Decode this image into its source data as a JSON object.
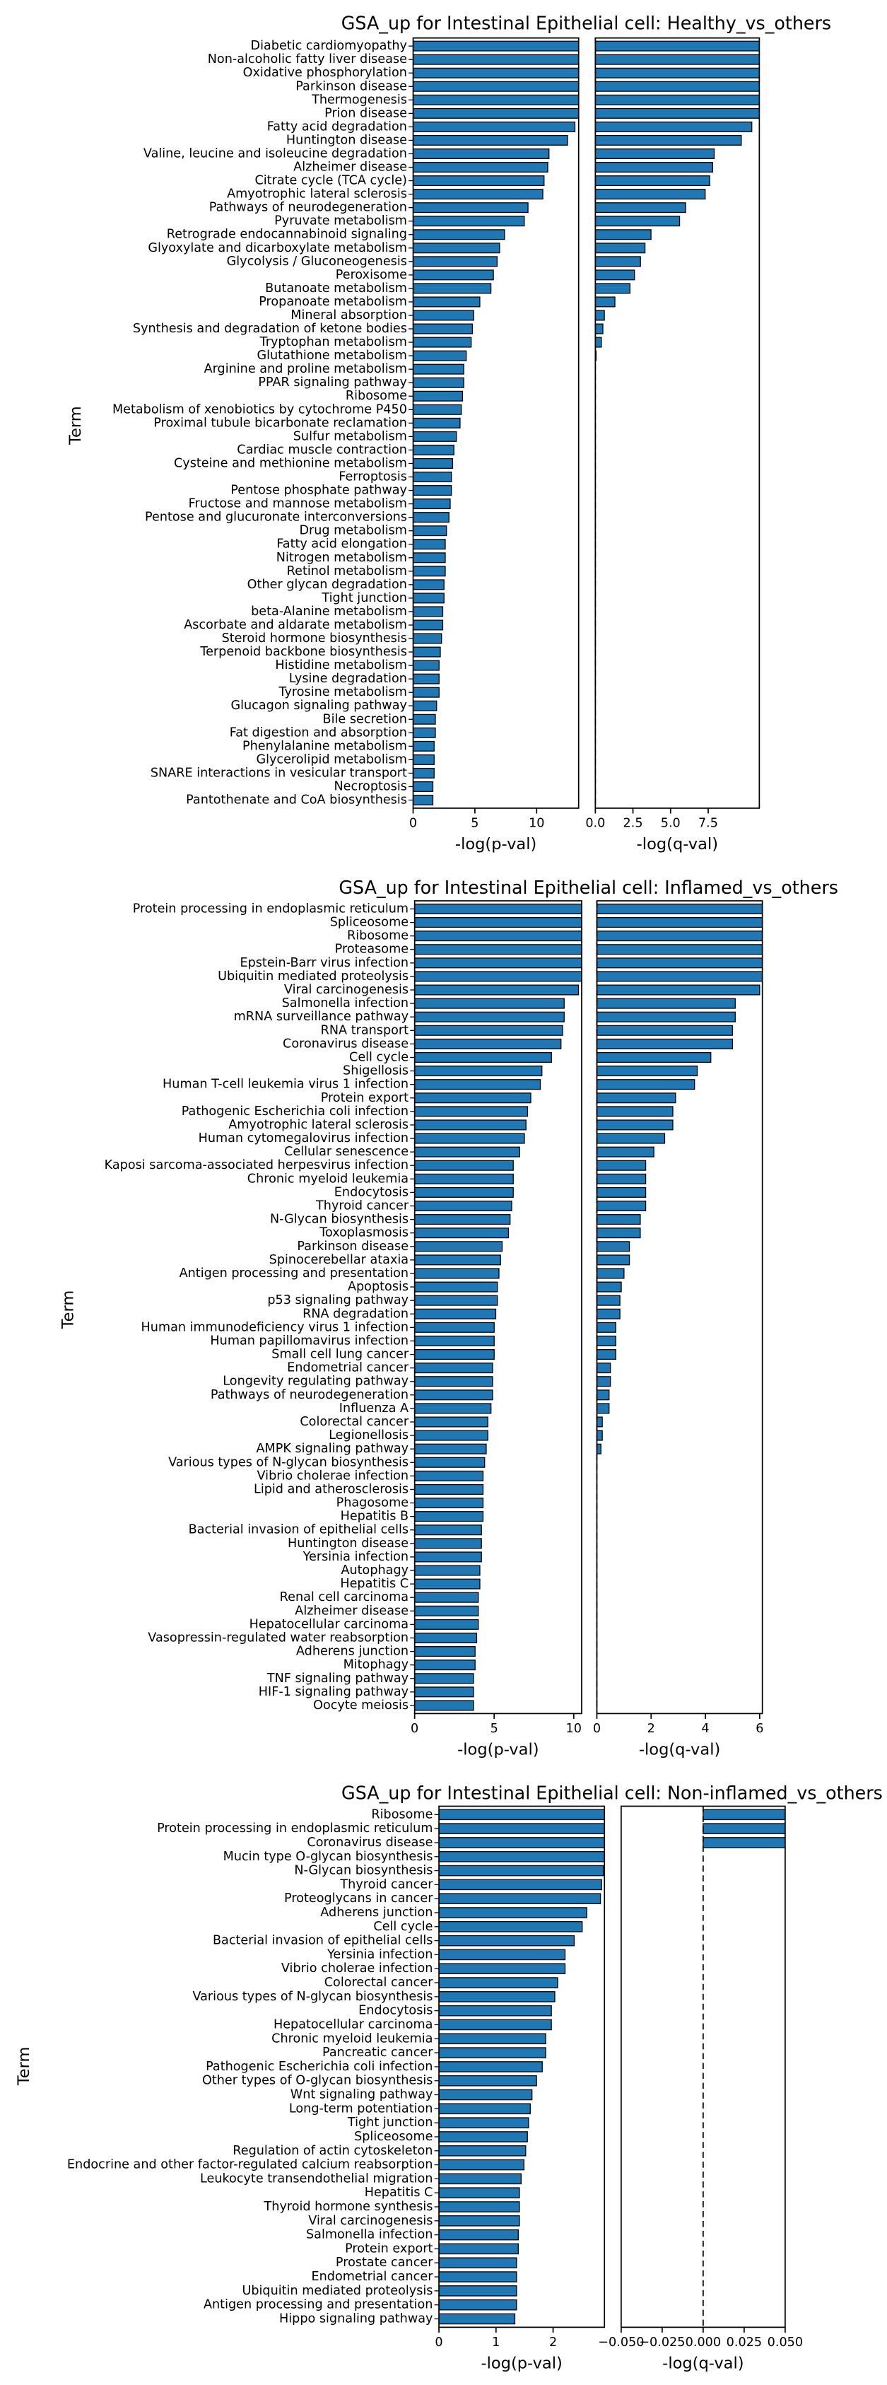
{
  "chart_data": [
    {
      "type": "bar",
      "orientation": "horizontal",
      "title": "GSA_up for Intestinal Epithelial cell: Healthy_vs_others",
      "ylabel": "Term",
      "color": "#1f77b4",
      "categories": [
        "Diabetic cardiomyopathy",
        "Non-alcoholic fatty liver disease",
        "Oxidative phosphorylation",
        "Parkinson disease",
        "Thermogenesis",
        "Prion disease",
        "Fatty acid degradation",
        "Huntington disease",
        "Valine, leucine and isoleucine degradation",
        "Alzheimer disease",
        "Citrate cycle (TCA cycle)",
        "Amyotrophic lateral sclerosis",
        "Pathways of neurodegeneration",
        "Pyruvate metabolism",
        "Retrograde endocannabinoid signaling",
        "Glyoxylate and dicarboxylate metabolism",
        "Glycolysis / Gluconeogenesis",
        "Peroxisome",
        "Butanoate metabolism",
        "Propanoate metabolism",
        "Mineral absorption",
        "Synthesis and degradation of ketone bodies",
        "Tryptophan metabolism",
        "Glutathione metabolism",
        "Arginine and proline metabolism",
        "PPAR signaling pathway",
        "Ribosome",
        "Metabolism of xenobiotics by cytochrome P450",
        "Proximal tubule bicarbonate reclamation",
        "Sulfur metabolism",
        "Cardiac muscle contraction",
        "Cysteine and methionine metabolism",
        "Ferroptosis",
        "Pentose phosphate pathway",
        "Fructose and mannose metabolism",
        "Pentose and glucuronate interconversions",
        "Drug metabolism",
        "Fatty acid elongation",
        "Nitrogen metabolism",
        "Retinol metabolism",
        "Other glycan degradation",
        "Tight junction",
        "beta-Alanine metabolism",
        "Ascorbate and aldarate metabolism",
        "Steroid hormone biosynthesis",
        "Terpenoid backbone biosynthesis",
        "Histidine metabolism",
        "Lysine degradation",
        "Tyrosine metabolism",
        "Glucagon signaling pathway",
        "Bile secretion",
        "Fat digestion and absorption",
        "Phenylalanine metabolism",
        "Glycerolipid metabolism",
        "SNARE interactions in vesicular transport",
        "Necroptosis",
        "Pantothenate and CoA biosynthesis"
      ],
      "subplots": [
        {
          "xlabel": "-log(p-val)",
          "xlim": [
            0,
            13.4
          ],
          "xticks": [
            0,
            5,
            10
          ],
          "values": [
            13.4,
            13.4,
            13.4,
            13.4,
            13.4,
            13.4,
            13.1,
            12.5,
            11.0,
            10.9,
            10.6,
            10.5,
            9.3,
            9.0,
            7.4,
            7.0,
            6.8,
            6.5,
            6.3,
            5.4,
            4.9,
            4.8,
            4.7,
            4.3,
            4.1,
            4.1,
            4.0,
            3.9,
            3.8,
            3.5,
            3.3,
            3.2,
            3.1,
            3.1,
            3.0,
            2.9,
            2.7,
            2.6,
            2.6,
            2.6,
            2.5,
            2.5,
            2.4,
            2.4,
            2.3,
            2.2,
            2.1,
            2.1,
            2.1,
            1.9,
            1.8,
            1.8,
            1.7,
            1.7,
            1.7,
            1.6,
            1.6
          ]
        },
        {
          "xlabel": "-log(q-val)",
          "xlim": [
            0,
            10.9
          ],
          "xticks": [
            {
              "value": 0,
              "label": "0.0"
            },
            2.5,
            {
              "value": 5,
              "label": "5.0"
            },
            7.5
          ],
          "vline": 0,
          "values": [
            10.9,
            10.9,
            10.9,
            10.9,
            10.9,
            10.9,
            10.4,
            9.7,
            7.9,
            7.8,
            7.6,
            7.3,
            6.0,
            5.6,
            3.7,
            3.3,
            3.0,
            2.6,
            2.3,
            1.3,
            0.6,
            0.5,
            0.4,
            0.05,
            0,
            0,
            0,
            0,
            0,
            0,
            0,
            0,
            0,
            0,
            0,
            0,
            0,
            0,
            0,
            0,
            0,
            0,
            0,
            0,
            0,
            0,
            0,
            0,
            0,
            0,
            0,
            0,
            0,
            0,
            0,
            0,
            0
          ]
        }
      ]
    },
    {
      "type": "bar",
      "orientation": "horizontal",
      "title": "GSA_up for Intestinal Epithelial cell: Inflamed_vs_others",
      "ylabel": "Term",
      "color": "#1f77b4",
      "categories": [
        "Protein processing in endoplasmic reticulum",
        "Spliceosome",
        "Ribosome",
        "Proteasome",
        "Epstein-Barr virus infection",
        "Ubiquitin mediated proteolysis",
        "Viral carcinogenesis",
        "Salmonella infection",
        "mRNA surveillance pathway",
        "RNA transport",
        "Coronavirus disease",
        "Cell cycle",
        "Shigellosis",
        "Human T-cell leukemia virus 1 infection",
        "Protein export",
        "Pathogenic Escherichia coli infection",
        "Amyotrophic lateral sclerosis",
        "Human cytomegalovirus infection",
        "Cellular senescence",
        "Kaposi sarcoma-associated herpesvirus infection",
        "Chronic myeloid leukemia",
        "Endocytosis",
        "Thyroid cancer",
        "N-Glycan biosynthesis",
        "Toxoplasmosis",
        "Parkinson disease",
        "Spinocerebellar ataxia",
        "Antigen processing and presentation",
        "Apoptosis",
        "p53 signaling pathway",
        "RNA degradation",
        "Human immunodeficiency virus 1 infection",
        "Human papillomavirus infection",
        "Small cell lung cancer",
        "Endometrial cancer",
        "Longevity regulating pathway",
        "Pathways of neurodegeneration",
        "Influenza A",
        "Colorectal cancer",
        "Legionellosis",
        "AMPK signaling pathway",
        "Various types of N-glycan biosynthesis",
        "Vibrio cholerae infection",
        "Lipid and atherosclerosis",
        "Phagosome",
        "Hepatitis B",
        "Bacterial invasion of epithelial cells",
        "Huntington disease",
        "Yersinia infection",
        "Autophagy",
        "Hepatitis C",
        "Renal cell carcinoma",
        "Alzheimer disease",
        "Hepatocellular carcinoma",
        "Vasopressin-regulated water reabsorption",
        "Adherens junction",
        "Mitophagy",
        "TNF signaling pathway",
        "HIF-1 signaling pathway",
        "Oocyte meiosis"
      ],
      "subplots": [
        {
          "xlabel": "-log(p-val)",
          "xlim": [
            0,
            10.5
          ],
          "xticks": [
            0,
            5,
            10
          ],
          "values": [
            10.5,
            10.5,
            10.5,
            10.5,
            10.5,
            10.5,
            10.3,
            9.4,
            9.4,
            9.3,
            9.2,
            8.6,
            8.0,
            7.9,
            7.3,
            7.1,
            7.0,
            6.9,
            6.6,
            6.2,
            6.2,
            6.2,
            6.1,
            6.0,
            5.9,
            5.5,
            5.4,
            5.3,
            5.2,
            5.2,
            5.1,
            5.0,
            5.0,
            5.0,
            4.9,
            4.9,
            4.9,
            4.8,
            4.6,
            4.6,
            4.5,
            4.4,
            4.3,
            4.3,
            4.3,
            4.3,
            4.2,
            4.2,
            4.2,
            4.1,
            4.1,
            4.0,
            4.0,
            4.0,
            3.9,
            3.8,
            3.8,
            3.7,
            3.7,
            3.7
          ]
        },
        {
          "xlabel": "-log(q-val)",
          "xlim": [
            0,
            6.1
          ],
          "xticks": [
            0,
            2,
            4,
            6
          ],
          "vline": 0,
          "values": [
            6.1,
            6.1,
            6.1,
            6.1,
            6.1,
            6.1,
            6.0,
            5.1,
            5.1,
            5.0,
            5.0,
            4.2,
            3.7,
            3.6,
            2.9,
            2.8,
            2.8,
            2.5,
            2.1,
            1.8,
            1.8,
            1.8,
            1.8,
            1.6,
            1.6,
            1.2,
            1.2,
            1.0,
            0.9,
            0.85,
            0.85,
            0.7,
            0.7,
            0.7,
            0.5,
            0.5,
            0.45,
            0.45,
            0.2,
            0.2,
            0.15,
            0,
            0,
            0,
            0,
            0,
            0,
            0,
            0,
            0,
            0,
            0,
            0,
            0,
            0,
            0,
            0,
            0,
            0,
            0
          ]
        }
      ]
    },
    {
      "type": "bar",
      "orientation": "horizontal",
      "title": "GSA_up for Intestinal Epithelial cell: Non-inflamed_vs_others",
      "ylabel": "Term",
      "color": "#1f77b4",
      "categories": [
        "Ribosome",
        "Protein processing in endoplasmic reticulum",
        "Coronavirus disease",
        "Mucin type O-glycan biosynthesis",
        "N-Glycan biosynthesis",
        "Thyroid cancer",
        "Proteoglycans in cancer",
        "Adherens junction",
        "Cell cycle",
        "Bacterial invasion of epithelial cells",
        "Yersinia infection",
        "Vibrio cholerae infection",
        "Colorectal cancer",
        "Various types of N-glycan biosynthesis",
        "Endocytosis",
        "Hepatocellular carcinoma",
        "Chronic myeloid leukemia",
        "Pancreatic cancer",
        "Pathogenic Escherichia coli infection",
        "Other types of O-glycan biosynthesis",
        "Wnt signaling pathway",
        "Long-term potentiation",
        "Tight junction",
        "Spliceosome",
        "Regulation of actin cytoskeleton",
        "Endocrine and other factor-regulated calcium reabsorption",
        "Leukocyte transendothelial migration",
        "Hepatitis C",
        "Thyroid hormone synthesis",
        "Viral carcinogenesis",
        "Salmonella infection",
        "Protein export",
        "Prostate cancer",
        "Endometrial cancer",
        "Ubiquitin mediated proteolysis",
        "Antigen processing and presentation",
        "Hippo signaling pathway"
      ],
      "subplots": [
        {
          "xlabel": "-log(p-val)",
          "xlim": [
            0,
            2.9
          ],
          "xticks": [
            0,
            1,
            2
          ],
          "values": [
            2.9,
            2.9,
            2.9,
            2.9,
            2.88,
            2.85,
            2.83,
            2.59,
            2.51,
            2.37,
            2.21,
            2.21,
            2.08,
            2.03,
            1.97,
            1.97,
            1.87,
            1.87,
            1.81,
            1.71,
            1.63,
            1.6,
            1.57,
            1.55,
            1.52,
            1.49,
            1.44,
            1.41,
            1.41,
            1.41,
            1.39,
            1.39,
            1.36,
            1.36,
            1.36,
            1.36,
            1.33
          ]
        },
        {
          "xlabel": "-log(q-val)",
          "xlim": [
            -0.05,
            0.05
          ],
          "xticks": [
            {
              "value": -0.05,
              "label": "−0.050"
            },
            {
              "value": -0.025,
              "label": "−0.025"
            },
            {
              "value": 0,
              "label": "0.000"
            },
            {
              "value": 0.025,
              "label": "0.025"
            },
            {
              "value": 0.05,
              "label": "0.050"
            }
          ],
          "vline": 0,
          "values": [
            0.05,
            0.05,
            0.05,
            0,
            0,
            0,
            0,
            0,
            0,
            0,
            0,
            0,
            0,
            0,
            0,
            0,
            0,
            0,
            0,
            0,
            0,
            0,
            0,
            0,
            0,
            0,
            0,
            0,
            0,
            0,
            0,
            0,
            0,
            0,
            0,
            0,
            0
          ]
        }
      ]
    }
  ]
}
